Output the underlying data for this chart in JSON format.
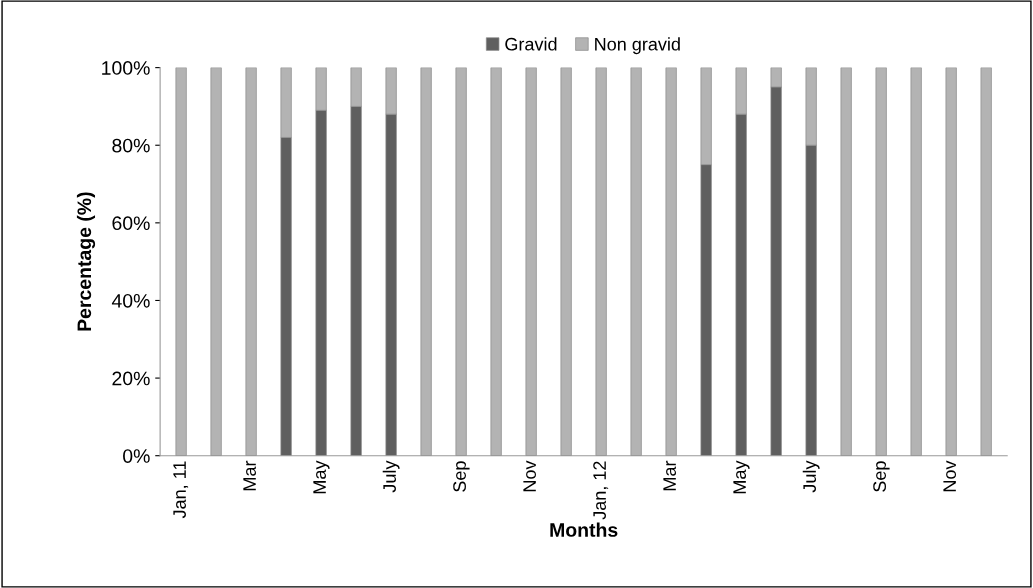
{
  "chart_data": {
    "type": "bar",
    "stacked": true,
    "xlabel": "Months",
    "ylabel": "Percentage (%)",
    "categories": [
      "Jan, 11",
      null,
      "Mar",
      null,
      "May",
      null,
      "July",
      null,
      "Sep",
      null,
      "Nov",
      null,
      "Jan, 12",
      null,
      "Mar",
      null,
      "May",
      null,
      "July",
      null,
      "Sep",
      null,
      "Nov",
      null
    ],
    "series": [
      {
        "name": "Gravid",
        "color": "#5f5f5f",
        "values": [
          0,
          0,
          0,
          82,
          89,
          90,
          88,
          0,
          0,
          0,
          0,
          0,
          0,
          0,
          0,
          75,
          88,
          95,
          80,
          0,
          0,
          0,
          0,
          0
        ]
      },
      {
        "name": "Non gravid",
        "color": "#b3b3b3",
        "values": [
          100,
          100,
          100,
          18,
          11,
          10,
          12,
          100,
          100,
          100,
          100,
          100,
          100,
          100,
          100,
          25,
          12,
          5,
          20,
          100,
          100,
          100,
          100,
          100
        ]
      }
    ],
    "ylim": [
      0,
      100
    ],
    "yticks": [
      {
        "value": 0,
        "label": "0%"
      },
      {
        "value": 20,
        "label": "20%"
      },
      {
        "value": 40,
        "label": "40%"
      },
      {
        "value": 60,
        "label": "60%"
      },
      {
        "value": 80,
        "label": "80%"
      },
      {
        "value": 100,
        "label": "100%"
      }
    ],
    "grid": false,
    "legend": "top"
  }
}
